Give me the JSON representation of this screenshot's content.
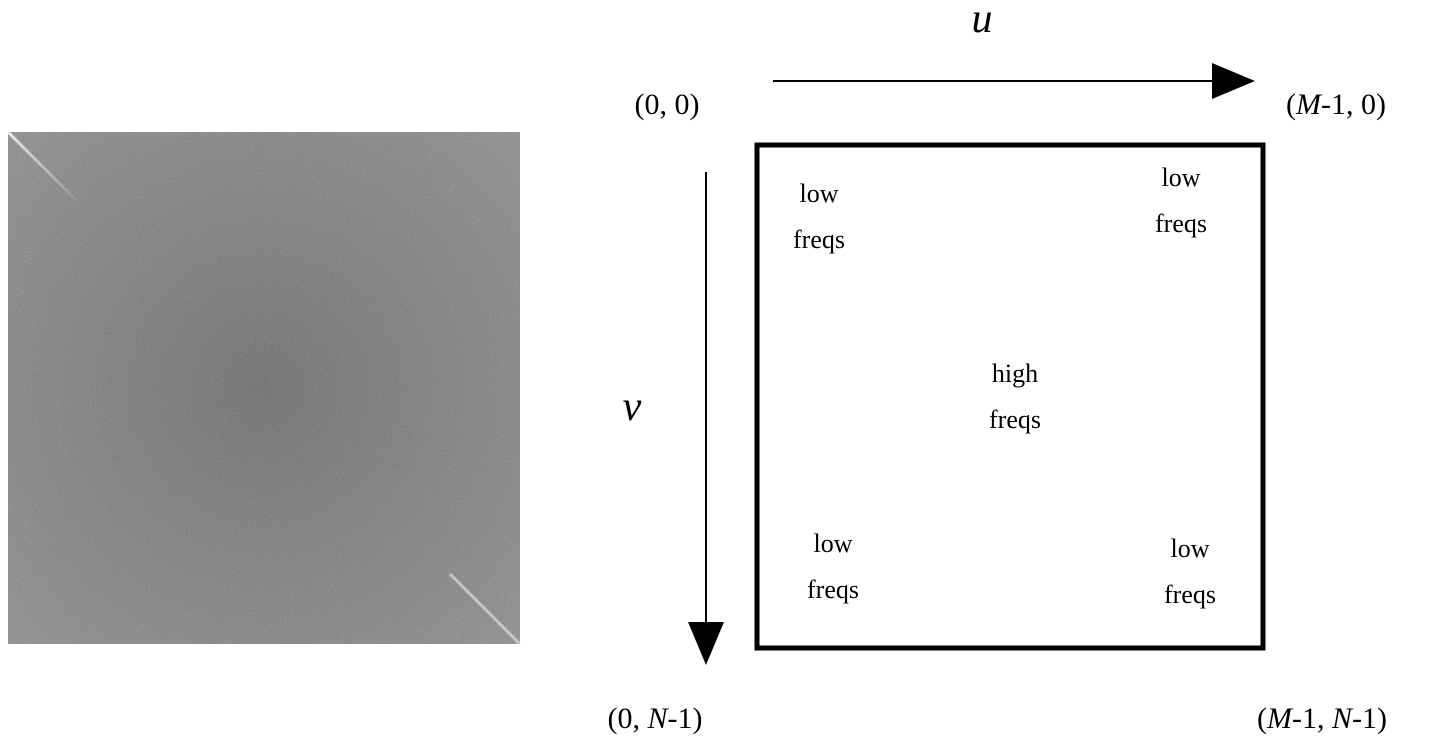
{
  "axes": {
    "u": "u",
    "v": "v"
  },
  "corners": [
    {
      "parts": [
        "(0, 0)"
      ]
    },
    {
      "parts": [
        "(",
        "M",
        "-1, 0)"
      ]
    },
    {
      "parts": [
        "(0, ",
        "N",
        "-1)"
      ]
    },
    {
      "parts": [
        "(",
        "M",
        "-1, ",
        "N",
        "-1)"
      ]
    }
  ],
  "regions": [
    {
      "lines": [
        "low",
        "freqs"
      ]
    },
    {
      "lines": [
        "low",
        "freqs"
      ]
    },
    {
      "lines": [
        "high",
        "freqs"
      ]
    },
    {
      "lines": [
        "low",
        "freqs"
      ]
    },
    {
      "lines": [
        "low",
        "freqs"
      ]
    }
  ]
}
